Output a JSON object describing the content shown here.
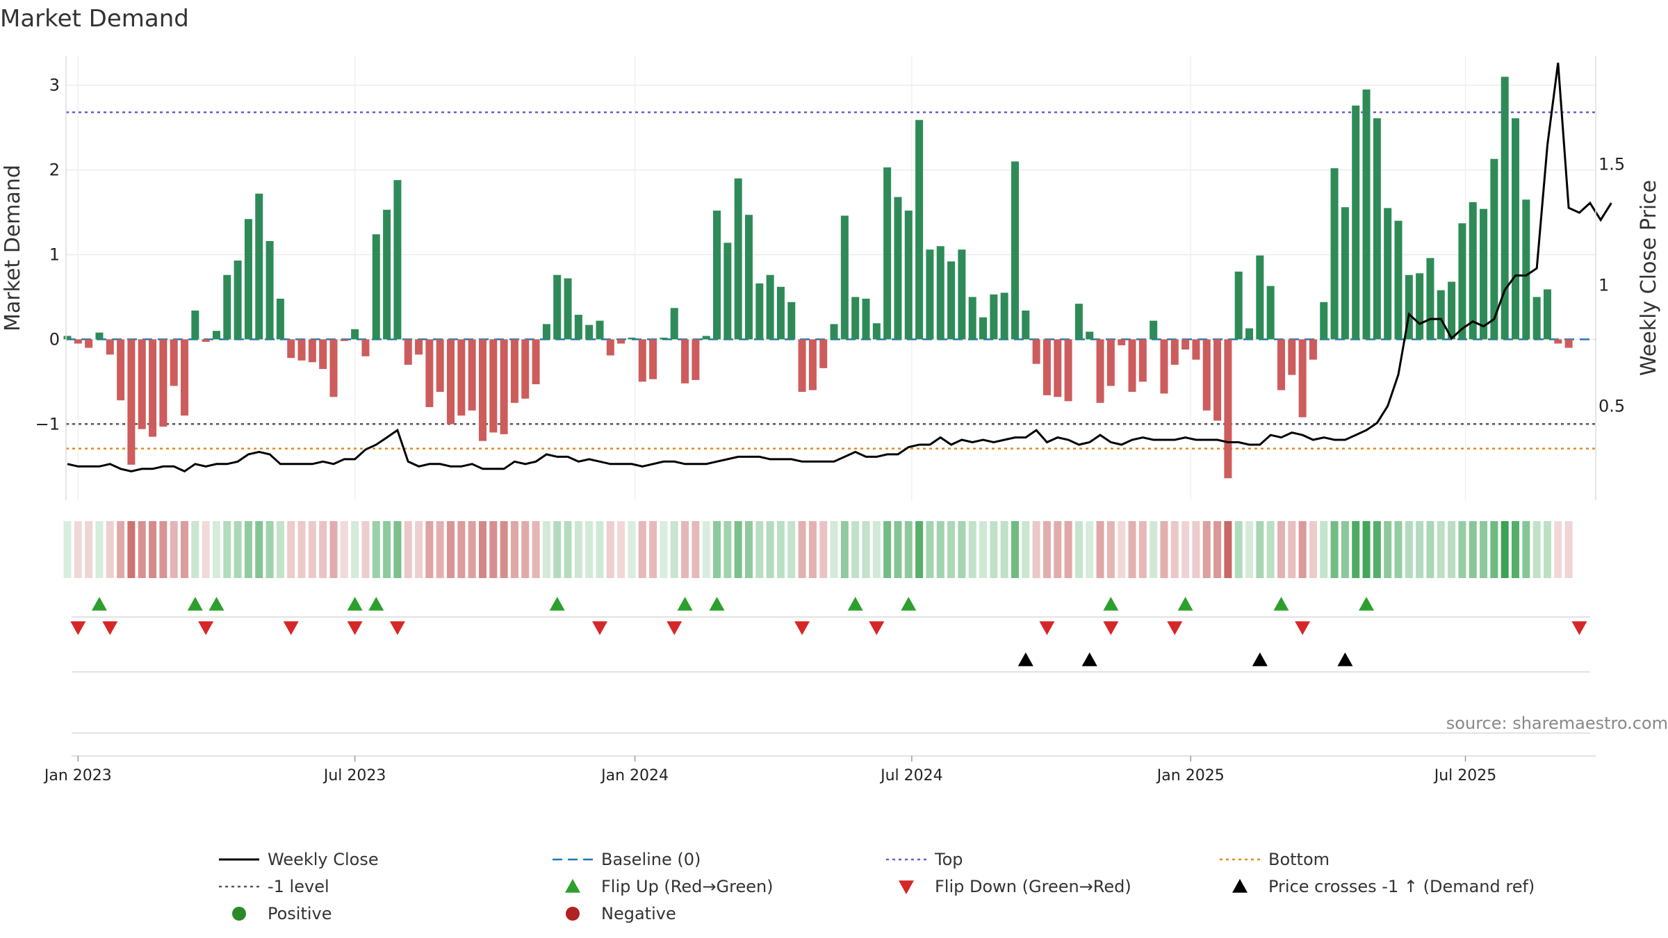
{
  "chart_data": {
    "type": "bar",
    "title": "Market Demand",
    "ylabel": "Market Demand",
    "y2label": "Weekly Close Price",
    "ylim": [
      -1.9,
      3.35
    ],
    "y2lim": [
      0.11,
      1.95
    ],
    "yticks": [
      -1,
      0,
      1,
      2,
      3
    ],
    "ytick_labels": [
      "−1",
      "0",
      "1",
      "2",
      "3"
    ],
    "y2ticks": [
      0.5,
      1,
      1.5
    ],
    "y2tick_labels": [
      "0.5",
      "1",
      "1.5"
    ],
    "x_start": "2022-12-26",
    "x_end": "2025-10-20",
    "xticks": [
      {
        "label": "Jan 2023",
        "week": 1
      },
      {
        "label": "Jul 2023",
        "week": 27
      },
      {
        "label": "Jan 2024",
        "week": 53.3
      },
      {
        "label": "Jul 2024",
        "week": 79.3
      },
      {
        "label": "Jan 2025",
        "week": 105.5
      },
      {
        "label": "Jul 2025",
        "week": 131.3
      }
    ],
    "reference_lines": {
      "top": 2.68,
      "minus_one": -1,
      "bottom": -1.29,
      "baseline": 0
    },
    "demand": [
      0.04,
      -0.05,
      -0.1,
      0.08,
      -0.18,
      -0.72,
      -1.48,
      -1.06,
      -1.15,
      -1.03,
      -0.55,
      -0.9,
      0.34,
      -0.03,
      0.1,
      0.76,
      0.93,
      1.42,
      1.72,
      1.16,
      0.48,
      -0.22,
      -0.25,
      -0.27,
      -0.35,
      -0.68,
      -0.02,
      0.12,
      -0.2,
      1.24,
      1.53,
      1.88,
      -0.3,
      -0.18,
      -0.8,
      -0.62,
      -1.0,
      -0.9,
      -0.84,
      -1.2,
      -1.1,
      -1.12,
      -0.75,
      -0.7,
      -0.53,
      0.18,
      0.76,
      0.72,
      0.29,
      0.17,
      0.22,
      -0.19,
      -0.05,
      0.02,
      -0.5,
      -0.47,
      0.02,
      0.37,
      -0.52,
      -0.48,
      0.04,
      1.52,
      1.14,
      1.9,
      1.47,
      0.66,
      0.76,
      0.62,
      0.44,
      -0.62,
      -0.6,
      -0.34,
      0.18,
      1.46,
      0.5,
      0.48,
      0.19,
      2.03,
      1.68,
      1.52,
      2.59,
      1.06,
      1.1,
      0.92,
      1.06,
      0.5,
      0.26,
      0.53,
      0.55,
      2.1,
      0.34,
      -0.29,
      -0.66,
      -0.68,
      -0.73,
      0.42,
      0.09,
      -0.75,
      -0.55,
      -0.07,
      -0.62,
      -0.5,
      0.22,
      -0.64,
      -0.3,
      -0.12,
      -0.24,
      -0.84,
      -0.96,
      -1.64,
      0.8,
      0.13,
      0.99,
      0.63,
      -0.6,
      -0.42,
      -0.92,
      -0.24,
      0.44,
      2.02,
      1.56,
      2.76,
      2.95,
      2.61,
      1.55,
      1.4,
      0.76,
      0.78,
      0.96,
      0.58,
      0.68,
      1.37,
      1.62,
      1.54,
      2.13,
      3.1,
      2.61,
      1.65,
      0.5,
      0.59,
      -0.05,
      -0.1
    ],
    "price": [
      0.26,
      0.25,
      0.25,
      0.25,
      0.26,
      0.24,
      0.23,
      0.24,
      0.24,
      0.25,
      0.25,
      0.23,
      0.26,
      0.25,
      0.26,
      0.26,
      0.27,
      0.3,
      0.31,
      0.3,
      0.26,
      0.26,
      0.26,
      0.26,
      0.27,
      0.26,
      0.28,
      0.28,
      0.32,
      0.34,
      0.37,
      0.4,
      0.27,
      0.25,
      0.26,
      0.26,
      0.25,
      0.25,
      0.26,
      0.24,
      0.24,
      0.24,
      0.27,
      0.26,
      0.27,
      0.3,
      0.29,
      0.29,
      0.27,
      0.28,
      0.27,
      0.26,
      0.26,
      0.26,
      0.25,
      0.26,
      0.27,
      0.27,
      0.26,
      0.26,
      0.26,
      0.27,
      0.28,
      0.29,
      0.29,
      0.29,
      0.28,
      0.28,
      0.28,
      0.27,
      0.27,
      0.27,
      0.27,
      0.29,
      0.31,
      0.29,
      0.29,
      0.3,
      0.3,
      0.33,
      0.34,
      0.34,
      0.37,
      0.34,
      0.36,
      0.35,
      0.36,
      0.35,
      0.36,
      0.37,
      0.37,
      0.4,
      0.35,
      0.37,
      0.36,
      0.34,
      0.35,
      0.38,
      0.35,
      0.34,
      0.36,
      0.37,
      0.36,
      0.36,
      0.36,
      0.37,
      0.36,
      0.36,
      0.36,
      0.35,
      0.35,
      0.34,
      0.34,
      0.38,
      0.37,
      0.39,
      0.38,
      0.36,
      0.37,
      0.36,
      0.36,
      0.38,
      0.4,
      0.43,
      0.5,
      0.63,
      0.88,
      0.84,
      0.86,
      0.86,
      0.78,
      0.82,
      0.85,
      0.83,
      0.86,
      0.98,
      1.04,
      1.04,
      1.07,
      1.58,
      1.92,
      1.32,
      1.3,
      1.34,
      1.27,
      1.34
    ],
    "flip_up_weeks": [
      3,
      12,
      14,
      27,
      29,
      46,
      58,
      61,
      74,
      79,
      98,
      105,
      114,
      122
    ],
    "flip_down_weeks": [
      1,
      4,
      13,
      21,
      27,
      31,
      50,
      57,
      69,
      76,
      92,
      98,
      104,
      116,
      142
    ],
    "price_cross_weeks": [
      90,
      96,
      112,
      120
    ]
  },
  "legend": [
    {
      "label": "Weekly Close",
      "kind": "line",
      "color": "#000000"
    },
    {
      "label": "Baseline (0)",
      "kind": "dash",
      "color": "#1f77b4"
    },
    {
      "label": "Top",
      "kind": "dot",
      "color": "#6a5acd"
    },
    {
      "label": "Bottom",
      "kind": "dot",
      "color": "#e08a1e"
    },
    {
      "label": "-1 level",
      "kind": "dot",
      "color": "#555555"
    },
    {
      "label": "Flip Up (Red→Green)",
      "kind": "tri-up",
      "color": "#2ca02c"
    },
    {
      "label": "Flip Down (Green→Red)",
      "kind": "tri-down",
      "color": "#d62728"
    },
    {
      "label": "Price crosses -1 ↑ (Demand ref)",
      "kind": "tri-up",
      "color": "#000000"
    },
    {
      "label": "Positive",
      "kind": "circle",
      "color": "#2a8a2a"
    },
    {
      "label": "Negative",
      "kind": "circle",
      "color": "#b22222"
    }
  ],
  "source": "source: sharemaestro.com",
  "colors": {
    "positive": "#2e8b57",
    "negative": "#cd5c5c",
    "price": "#000000"
  }
}
